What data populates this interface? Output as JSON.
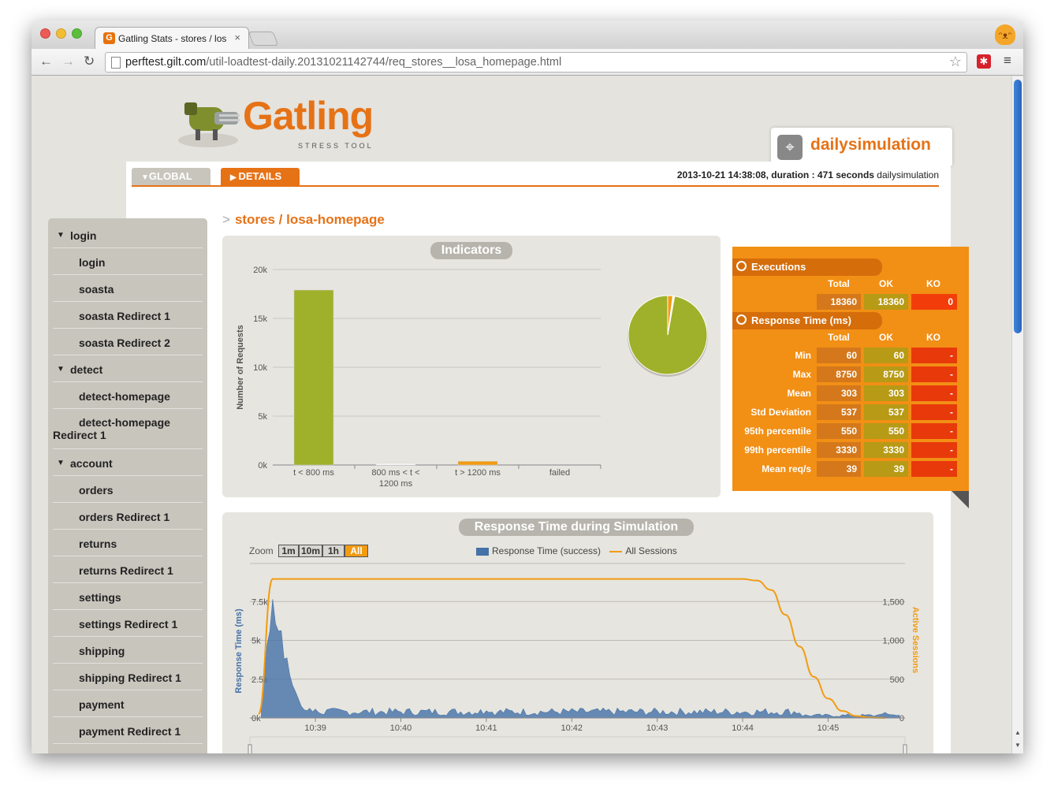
{
  "browser": {
    "tab_title": "Gatling Stats - stores / los",
    "tab_close": "×",
    "tab_favicon": "G",
    "url_host": "perftest.gilt.com",
    "url_path": "/util-loadtest-daily.20131021142744/req_stores__losa_homepage.html",
    "back": "←",
    "forward": "→",
    "reload": "↻",
    "star": "☆",
    "ext": "✱",
    "menu": "≡",
    "cat": "ᵔᴥᵔ"
  },
  "header": {
    "logo_text": "Gatling",
    "logo_sub": "STRESS TOOL",
    "simulation_name": "dailysimulation",
    "sim_icon": "⌖",
    "tab_global": "GLOBAL",
    "tab_details": "DETAILS",
    "run_info_bold": "2013-10-21 14:38:08, duration : 471 seconds",
    "run_info_name": "dailysimulation"
  },
  "sidebar": {
    "items": [
      {
        "label": "login",
        "type": "group"
      },
      {
        "label": "login",
        "type": "child"
      },
      {
        "label": "soasta",
        "type": "child"
      },
      {
        "label": "soasta Redirect 1",
        "type": "child"
      },
      {
        "label": "soasta Redirect 2",
        "type": "child"
      },
      {
        "label": "detect",
        "type": "group"
      },
      {
        "label": "detect-homepage",
        "type": "child"
      },
      {
        "label": "detect-homepage",
        "label2": "Redirect 1",
        "type": "wrap"
      },
      {
        "label": "account",
        "type": "group"
      },
      {
        "label": "orders",
        "type": "child"
      },
      {
        "label": "orders Redirect 1",
        "type": "child"
      },
      {
        "label": "returns",
        "type": "child"
      },
      {
        "label": "returns Redirect 1",
        "type": "child"
      },
      {
        "label": "settings",
        "type": "child"
      },
      {
        "label": "settings Redirect 1",
        "type": "child"
      },
      {
        "label": "shipping",
        "type": "child"
      },
      {
        "label": "shipping Redirect 1",
        "type": "child"
      },
      {
        "label": "payment",
        "type": "child"
      },
      {
        "label": "payment Redirect 1",
        "type": "child"
      }
    ]
  },
  "breadcrumb": {
    "gt": ">",
    "text": "stores / losa-homepage"
  },
  "indicators": {
    "title": "Indicators",
    "ylabel": "Number of Requests",
    "colors": {
      "ok": "#9fb12a",
      "ko": "#f29b13"
    }
  },
  "stats": {
    "executions_title": "Executions",
    "response_title": "Response Time (ms)",
    "cols": [
      "Total",
      "OK",
      "KO"
    ],
    "executions": {
      "total": "18360",
      "ok": "18360",
      "ko": "0"
    },
    "rows": [
      {
        "label": "Min",
        "total": "60",
        "ok": "60",
        "ko": "-"
      },
      {
        "label": "Max",
        "total": "8750",
        "ok": "8750",
        "ko": "-"
      },
      {
        "label": "Mean",
        "total": "303",
        "ok": "303",
        "ko": "-"
      },
      {
        "label": "Std Deviation",
        "total": "537",
        "ok": "537",
        "ko": "-"
      },
      {
        "label": "95th percentile",
        "total": "550",
        "ok": "550",
        "ko": "-"
      },
      {
        "label": "99th percentile",
        "total": "3330",
        "ok": "3330",
        "ko": "-"
      },
      {
        "label": "Mean req/s",
        "total": "39",
        "ok": "39",
        "ko": "-"
      }
    ]
  },
  "response_chart": {
    "title": "Response Time during Simulation",
    "zoom_label": "Zoom",
    "zoom_buttons": [
      "1m",
      "10m",
      "1h",
      "All"
    ],
    "active_zoom": "All",
    "legend_response": "Response Time (success)",
    "legend_sessions": "All Sessions",
    "ylabel_left": "Response Time (ms)",
    "ylabel_right": "Active Sessions",
    "colors": {
      "response": "#4572a7",
      "sessions": "#f29b13"
    }
  },
  "chart_data": [
    {
      "type": "bar",
      "title": "",
      "ylabel": "Number of Requests",
      "categories": [
        "t < 800 ms",
        "800 ms < t < 1200 ms",
        "t > 1200 ms",
        "failed"
      ],
      "values": [
        17900,
        130,
        380,
        0
      ],
      "y_ticks": [
        "0k",
        "5k",
        "10k",
        "15k",
        "20k"
      ],
      "ylim": [
        0,
        20000
      ],
      "pie": {
        "values": [
          17900,
          130,
          380,
          0
        ],
        "colors": [
          "#9fb12a",
          "#ffffff",
          "#f29b13",
          "#e8390b"
        ]
      }
    },
    {
      "type": "area",
      "title": "Response Time during Simulation",
      "x_ticks": [
        "10:39",
        "10:40",
        "10:41",
        "10:42",
        "10:43",
        "10:44",
        "10:45"
      ],
      "y_left_ticks": [
        "0k",
        "2.5k",
        "5k",
        "7.5k"
      ],
      "y_right_ticks": [
        "0",
        "500",
        "1,000",
        "1,500"
      ],
      "ylim_left": [
        0,
        10000
      ],
      "ylim_right": [
        0,
        2000
      ],
      "sessions": {
        "x": [
          "10:38:20",
          "10:38:30",
          "10:38:40",
          "10:44:00",
          "10:44:10",
          "10:44:20",
          "10:44:30",
          "10:44:40",
          "10:44:50",
          "10:45:00",
          "10:45:10",
          "10:45:20",
          "10:45:30",
          "10:45:40"
        ],
        "y": [
          50,
          1790,
          1790,
          1790,
          1770,
          1650,
          1330,
          920,
          530,
          250,
          90,
          25,
          5,
          0
        ]
      },
      "response_peaks": {
        "x": [
          "10:38:25",
          "10:38:30",
          "10:38:35",
          "10:38:40",
          "10:38:45",
          "10:38:50",
          "10:39:00",
          "10:41:00",
          "10:45:40"
        ],
        "y": [
          800,
          8750,
          6400,
          4500,
          2200,
          900,
          500,
          400,
          1000
        ]
      }
    }
  ]
}
